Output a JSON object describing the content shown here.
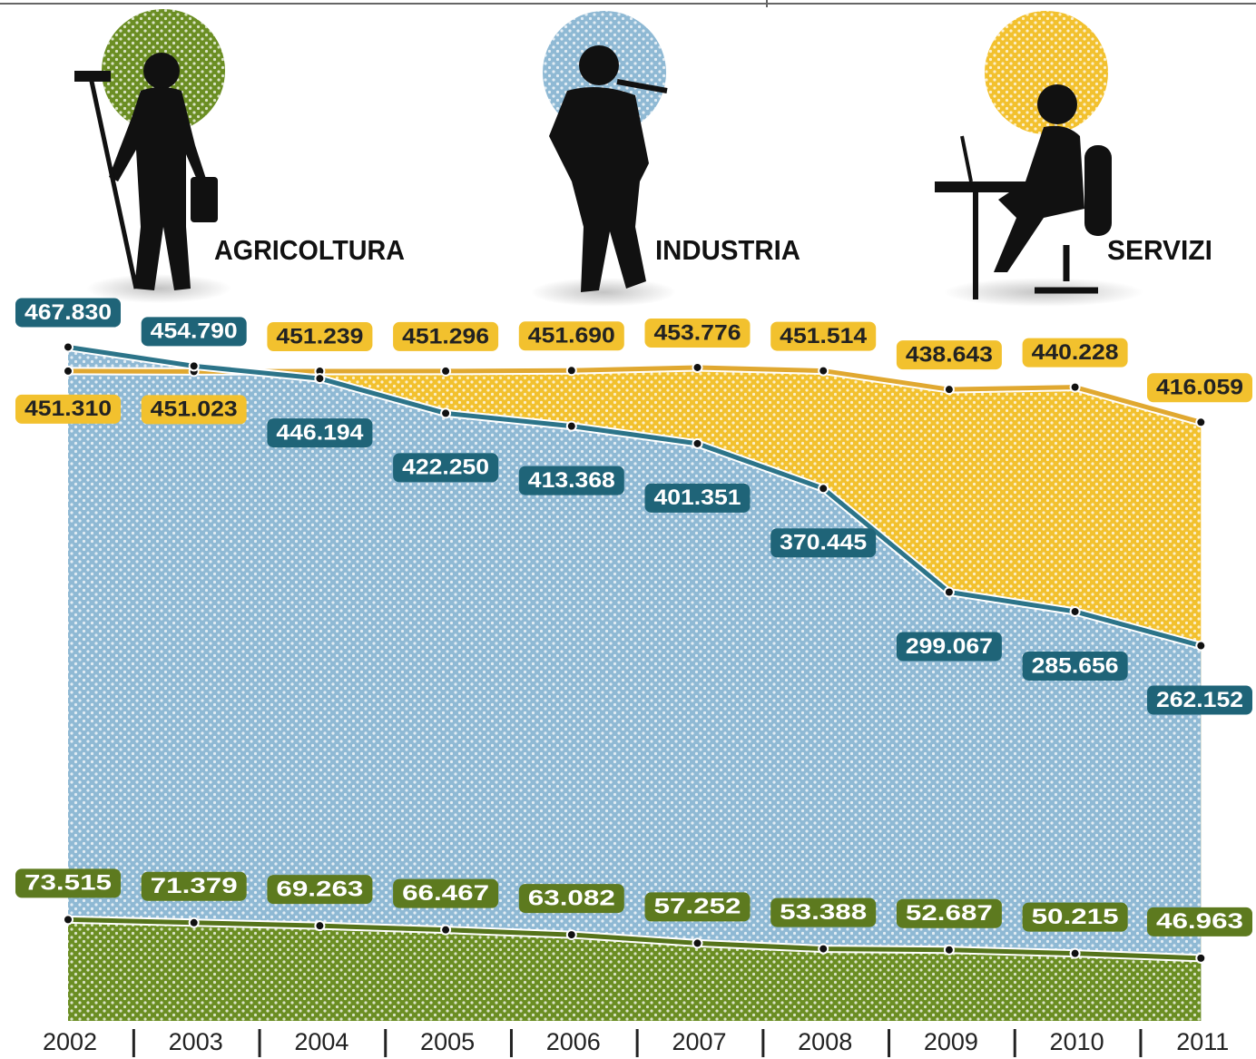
{
  "chart_data": {
    "type": "line",
    "categories": [
      "2002",
      "2003",
      "2004",
      "2005",
      "2006",
      "2007",
      "2008",
      "2009",
      "2010",
      "2011"
    ],
    "series": [
      {
        "name": "AGRICOLTURA",
        "color": "#6b8e23",
        "values": [
          73515,
          71379,
          69263,
          66467,
          63082,
          57252,
          53388,
          52687,
          50215,
          46963
        ],
        "value_labels": [
          "73.515",
          "71.379",
          "69.263",
          "66.467",
          "63.082",
          "57.252",
          "53.388",
          "52.687",
          "50.215",
          "46.963"
        ]
      },
      {
        "name": "INDUSTRIA",
        "color": "#2c7489",
        "values": [
          467830,
          454790,
          446194,
          422250,
          413368,
          401351,
          370445,
          299067,
          285656,
          262152
        ],
        "value_labels": [
          "467.830",
          "454.790",
          "446.194",
          "422.250",
          "413.368",
          "401.351",
          "370.445",
          "299.067",
          "285.656",
          "262.152"
        ]
      },
      {
        "name": "SERVIZI",
        "color": "#f2c12e",
        "values": [
          451310,
          451023,
          451239,
          451296,
          451690,
          453776,
          451514,
          438643,
          440228,
          416059
        ],
        "value_labels": [
          "451.310",
          "451.023",
          "451.239",
          "451.296",
          "451.690",
          "453.776",
          "451.514",
          "438.643",
          "440.228",
          "416.059"
        ]
      }
    ]
  }
}
